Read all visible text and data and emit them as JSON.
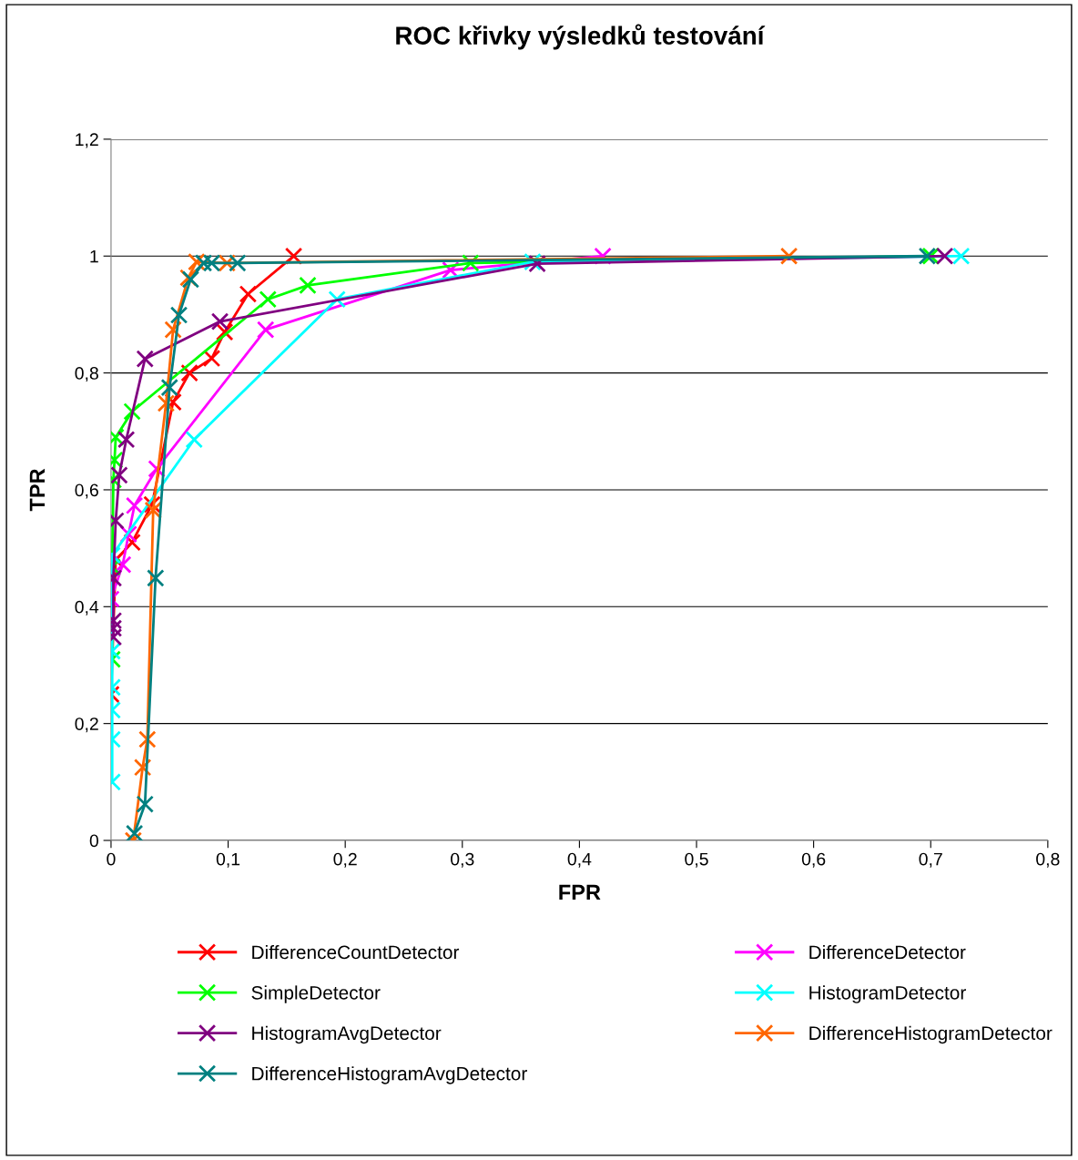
{
  "chart_data": {
    "type": "line",
    "title": "ROC křivky výsledků testování",
    "xlabel": "FPR",
    "ylabel": "TPR",
    "xlim": [
      0,
      0.8
    ],
    "ylim": [
      0,
      1.2
    ],
    "xticks": [
      0,
      {
        "value": 0.1,
        "label": "0,1"
      },
      {
        "value": 0.2,
        "label": "0,2"
      },
      {
        "value": 0.3,
        "label": "0,3"
      },
      {
        "value": 0.4,
        "label": "0,4"
      },
      {
        "value": 0.5,
        "label": "0,5"
      },
      {
        "value": 0.6,
        "label": "0,6"
      },
      {
        "value": 0.7,
        "label": "0,7"
      },
      {
        "value": 0.8,
        "label": "0,8"
      }
    ],
    "yticks": [
      0,
      {
        "value": 0.2,
        "label": "0,2"
      },
      {
        "value": 0.4,
        "label": "0,4"
      },
      {
        "value": 0.6,
        "label": "0,6"
      },
      {
        "value": 0.8,
        "label": "0,8"
      },
      1,
      {
        "value": 1.2,
        "label": "1,2"
      }
    ],
    "grid": "y",
    "legend": "bottom",
    "marker": "cross",
    "line_style": "solid",
    "series": [
      {
        "name": "DifferenceCountDetector",
        "color": "#ff0000",
        "x": [
          0,
          0.004,
          0.018,
          0.035,
          0.053,
          0.067,
          0.086,
          0.097,
          0.117,
          0.156
        ],
        "values": [
          0.25,
          0.48,
          0.51,
          0.575,
          0.75,
          0.8,
          0.825,
          0.87,
          0.935,
          1.0
        ]
      },
      {
        "name": "DifferenceDetector",
        "color": "#ff00ff",
        "x": [
          0,
          0.01,
          0.015,
          0.02,
          0.039,
          0.132,
          0.29,
          0.42
        ],
        "values": [
          0.413,
          0.472,
          0.524,
          0.573,
          0.636,
          0.874,
          0.976,
          1.0
        ]
      },
      {
        "name": "SimpleDetector",
        "color": "#00ff00",
        "x": [
          0.001,
          0.001,
          0.002,
          0.003,
          0.004,
          0.018,
          0.134,
          0.168,
          0.307,
          0.7
        ],
        "values": [
          0.31,
          0.468,
          0.617,
          0.651,
          0.69,
          0.734,
          0.926,
          0.95,
          0.988,
          1.0
        ]
      },
      {
        "name": "HistogramDetector",
        "color": "#00ffff",
        "x": [
          0.001,
          0.001,
          0.001,
          0.001,
          0.001,
          0.001,
          0.071,
          0.193,
          0.36,
          0.726
        ],
        "values": [
          0.1,
          0.173,
          0.223,
          0.262,
          0.324,
          0.488,
          0.686,
          0.926,
          0.99,
          1.0
        ]
      },
      {
        "name": "HistogramAvgDetector",
        "color": "#800080",
        "x": [
          0.002,
          0.002,
          0.002,
          0.002,
          0.004,
          0.007,
          0.013,
          0.029,
          0.093,
          0.364,
          0.712
        ],
        "values": [
          0.348,
          0.363,
          0.376,
          0.449,
          0.547,
          0.625,
          0.686,
          0.824,
          0.888,
          0.987,
          1.0
        ]
      },
      {
        "name": "DifferenceHistogramDetector",
        "color": "#ff6600",
        "x": [
          0.019,
          0.027,
          0.031,
          0.036,
          0.047,
          0.053,
          0.066,
          0.073,
          0.099,
          0.579
        ],
        "values": [
          0,
          0.125,
          0.173,
          0.565,
          0.748,
          0.874,
          0.963,
          0.99,
          0.988,
          1.0
        ]
      },
      {
        "name": "DifferenceHistogramAvgDetector",
        "color": "#008080",
        "x": [
          0.02,
          0.029,
          0.038,
          0.05,
          0.058,
          0.068,
          0.079,
          0.086,
          0.108,
          0.697
        ],
        "values": [
          0.012,
          0.062,
          0.449,
          0.775,
          0.899,
          0.96,
          0.988,
          0.988,
          0.988,
          1.0
        ]
      }
    ]
  }
}
